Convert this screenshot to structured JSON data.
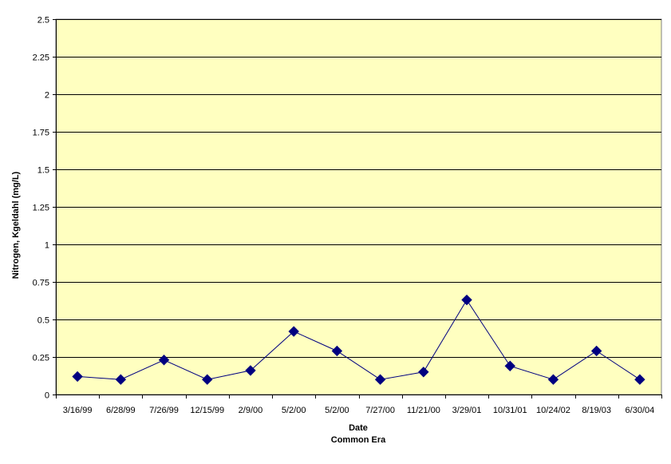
{
  "chart_data": {
    "type": "line",
    "title": "",
    "xlabel": "Date",
    "xlabel_sub": "Common Era",
    "ylabel": "Nitrogen, Kgeldahl (mg/L)",
    "ylim": [
      0,
      2.5
    ],
    "yticks": [
      0,
      0.25,
      0.5,
      0.75,
      1,
      1.25,
      1.5,
      1.75,
      2,
      2.25,
      2.5
    ],
    "ytick_labels": [
      "0",
      "0.25",
      "0.5",
      "0.75",
      "1",
      "1.25",
      "1.5",
      "1.75",
      "2",
      "2.25",
      "2.5"
    ],
    "categories": [
      "3/16/99",
      "6/28/99",
      "7/26/99",
      "12/15/99",
      "2/9/00",
      "5/2/00",
      "5/2/00",
      "7/27/00",
      "11/21/00",
      "3/29/01",
      "10/31/01",
      "10/24/02",
      "8/19/03",
      "6/30/04"
    ],
    "series": [
      {
        "values": [
          0.12,
          0.1,
          0.23,
          0.1,
          0.16,
          0.42,
          0.29,
          0.1,
          0.15,
          0.63,
          0.19,
          0.1,
          0.29,
          0.1
        ],
        "color": "#000080",
        "marker": "diamond"
      }
    ],
    "grid": true,
    "legend": "none",
    "colors": {
      "plot_background": "#FFFFC0",
      "gridline": "#000000",
      "line": "#000080",
      "marker": "#000080"
    }
  }
}
